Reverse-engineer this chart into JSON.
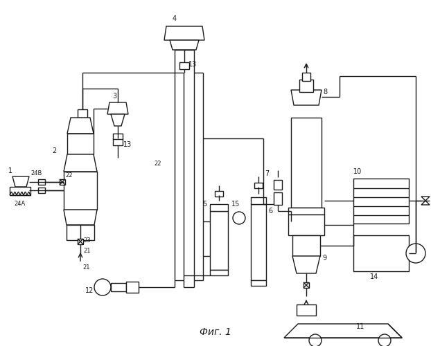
{
  "title": "Фиг. 1",
  "bg": "#ffffff",
  "lc": "#1a1a1a",
  "lw": 1.0
}
